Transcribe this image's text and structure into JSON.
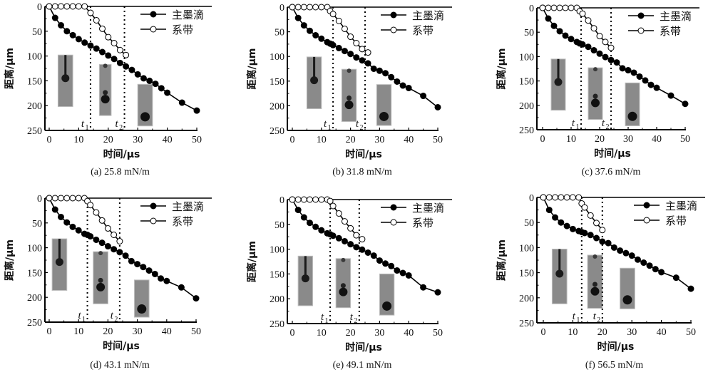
{
  "chart_data": [
    {
      "type": "line",
      "caption": "(a) 25.8 mN/m",
      "xlabel": "时间/μs",
      "ylabel": "距离/μm",
      "xlim": [
        0,
        50
      ],
      "ylim": [
        0,
        250
      ],
      "y_inverted": true,
      "xticks": [
        "0",
        "10",
        "20",
        "30",
        "40",
        "50"
      ],
      "yticks": [
        "0",
        "50",
        "100",
        "150",
        "200",
        "250"
      ],
      "legend": [
        "主墨滴",
        "系带"
      ],
      "legend_position": "top-right",
      "markers": [
        {
          "label": "t1",
          "main": "t",
          "sub": "1",
          "x": 14
        },
        {
          "label": "t2",
          "main": "t",
          "sub": "2",
          "x": 25.5
        }
      ],
      "series": [
        {
          "name": "主墨滴",
          "marker": "filled",
          "x": [
            0,
            2,
            4,
            6,
            8,
            10,
            12,
            14,
            16,
            18,
            20,
            22,
            24,
            26,
            28,
            30,
            32,
            34,
            36,
            38,
            40,
            45,
            50
          ],
          "y": [
            0,
            23,
            38,
            50,
            58,
            66,
            73,
            79,
            85,
            92,
            99,
            106,
            114,
            121,
            128,
            137,
            145,
            150,
            156,
            165,
            174,
            194,
            210
          ]
        },
        {
          "name": "系带",
          "marker": "open",
          "x": [
            0,
            2,
            4,
            6,
            8,
            10,
            12,
            14,
            16,
            18,
            20,
            22,
            24,
            26
          ],
          "y": [
            0,
            0,
            0,
            0,
            0,
            0,
            0,
            13,
            28,
            45,
            62,
            74,
            88,
            98
          ]
        }
      ]
    },
    {
      "type": "line",
      "caption": "(b) 31.8 mN/m",
      "xlabel": "时间/μs",
      "ylabel": "距离/μm",
      "xlim": [
        0,
        50
      ],
      "ylim": [
        0,
        250
      ],
      "y_inverted": true,
      "xticks": [
        "0",
        "10",
        "20",
        "30",
        "40",
        "50"
      ],
      "yticks": [
        "0",
        "50",
        "100",
        "150",
        "200",
        "250"
      ],
      "legend": [
        "主墨滴",
        "系带"
      ],
      "legend_position": "top-right",
      "markers": [
        {
          "label": "t1",
          "main": "t",
          "sub": "1",
          "x": 14
        },
        {
          "label": "t2",
          "main": "t",
          "sub": "2",
          "x": 25
        }
      ],
      "series": [
        {
          "name": "主墨滴",
          "marker": "filled",
          "x": [
            0,
            2,
            4,
            6,
            8,
            10,
            12,
            13,
            14,
            16,
            18,
            20,
            22,
            24,
            26,
            28,
            30,
            32,
            34,
            36,
            38,
            40,
            45,
            50
          ],
          "y": [
            0,
            22,
            37,
            48,
            57,
            64,
            71,
            74,
            77,
            83,
            89,
            95,
            102,
            108,
            114,
            125,
            129,
            134,
            142,
            151,
            159,
            164,
            180,
            203
          ]
        },
        {
          "name": "系带",
          "marker": "open",
          "x": [
            0,
            2,
            4,
            6,
            8,
            10,
            12,
            13,
            14,
            16,
            18,
            20,
            22,
            24,
            26
          ],
          "y": [
            0,
            0,
            0,
            0,
            0,
            0,
            0,
            8,
            14,
            28,
            44,
            60,
            73,
            85,
            92
          ]
        }
      ]
    },
    {
      "type": "line",
      "caption": "(c) 37.6 mN/m",
      "xlabel": "时间/μs",
      "ylabel": "距离/μm",
      "xlim": [
        0,
        50
      ],
      "ylim": [
        0,
        250
      ],
      "y_inverted": true,
      "xticks": [
        "0",
        "10",
        "20",
        "30",
        "40",
        "50"
      ],
      "yticks": [
        "0",
        "50",
        "100",
        "150",
        "200",
        "250"
      ],
      "legend": [
        "主墨滴",
        "系带"
      ],
      "legend_position": "top-right",
      "markers": [
        {
          "label": "t1",
          "main": "t",
          "sub": "1",
          "x": 13.5
        },
        {
          "label": "t2",
          "main": "t",
          "sub": "2",
          "x": 24
        }
      ],
      "series": [
        {
          "name": "主墨滴",
          "marker": "filled",
          "x": [
            0,
            2,
            4,
            6,
            8,
            10,
            12,
            13,
            14,
            16,
            18,
            20,
            22,
            24,
            26,
            28,
            30,
            32,
            34,
            36,
            38,
            40,
            45,
            50
          ],
          "y": [
            0,
            22,
            37,
            48,
            57,
            64,
            70,
            73,
            75,
            80,
            87,
            94,
            101,
            107,
            112,
            124,
            128,
            133,
            141,
            149,
            158,
            164,
            180,
            197
          ]
        },
        {
          "name": "系带",
          "marker": "open",
          "x": [
            0,
            2,
            4,
            6,
            8,
            10,
            12,
            13,
            14,
            16,
            18,
            20,
            22,
            24
          ],
          "y": [
            0,
            0,
            0,
            0,
            0,
            0,
            0,
            7,
            12,
            26,
            42,
            58,
            70,
            82
          ]
        }
      ]
    },
    {
      "type": "line",
      "caption": "(d) 43.1 mN/m",
      "xlabel": "时间/μs",
      "ylabel": "距离/μm",
      "xlim": [
        0,
        50
      ],
      "ylim": [
        0,
        250
      ],
      "y_inverted": true,
      "xticks": [
        "0",
        "10",
        "20",
        "30",
        "40",
        "50"
      ],
      "yticks": [
        "0",
        "50",
        "100",
        "150",
        "200",
        "250"
      ],
      "legend": [
        "主墨滴",
        "系带"
      ],
      "legend_position": "top-right",
      "markers": [
        {
          "label": "t1",
          "main": "t",
          "sub": "1",
          "x": 13
        },
        {
          "label": "t2",
          "main": "t",
          "sub": "2",
          "x": 24
        }
      ],
      "series": [
        {
          "name": "主墨滴",
          "marker": "filled",
          "x": [
            0,
            2,
            4,
            6,
            8,
            10,
            12,
            13,
            14,
            16,
            18,
            20,
            22,
            24,
            26,
            28,
            30,
            32,
            34,
            36,
            38,
            40,
            45,
            50
          ],
          "y": [
            0,
            23,
            38,
            49,
            58,
            65,
            72,
            74,
            77,
            84,
            90,
            97,
            103,
            109,
            116,
            127,
            133,
            139,
            146,
            153,
            162,
            167,
            180,
            202
          ]
        },
        {
          "name": "系带",
          "marker": "open",
          "x": [
            0,
            2,
            4,
            6,
            8,
            10,
            12,
            13,
            14,
            16,
            18,
            20,
            22,
            24
          ],
          "y": [
            0,
            0,
            0,
            0,
            0,
            0,
            0,
            6,
            14,
            29,
            45,
            61,
            74,
            87
          ]
        }
      ]
    },
    {
      "type": "line",
      "caption": "(e) 49.1 mN/m",
      "xlabel": "时间/μs",
      "ylabel": "距离/μm",
      "xlim": [
        0,
        50
      ],
      "ylim": [
        0,
        250
      ],
      "y_inverted": true,
      "xticks": [
        "0",
        "10",
        "20",
        "30",
        "40",
        "50"
      ],
      "yticks": [
        "0",
        "50",
        "100",
        "150",
        "200",
        "250"
      ],
      "legend": [
        "主墨滴",
        "系带"
      ],
      "legend_position": "top-right",
      "markers": [
        {
          "label": "t1",
          "main": "t",
          "sub": "1",
          "x": 13
        },
        {
          "label": "t2",
          "main": "t",
          "sub": "2",
          "x": 23
        }
      ],
      "series": [
        {
          "name": "主墨滴",
          "marker": "filled",
          "x": [
            0,
            2,
            4,
            6,
            8,
            10,
            12,
            13,
            14,
            16,
            18,
            20,
            22,
            24,
            26,
            28,
            30,
            32,
            34,
            36,
            38,
            40,
            45,
            50
          ],
          "y": [
            0,
            21,
            36,
            47,
            55,
            62,
            68,
            70,
            73,
            78,
            84,
            90,
            96,
            101,
            107,
            113,
            123,
            129,
            134,
            143,
            148,
            153,
            177,
            187
          ]
        },
        {
          "name": "系带",
          "marker": "open",
          "x": [
            0,
            2,
            4,
            6,
            8,
            10,
            12,
            13,
            14,
            16,
            18,
            20,
            22,
            24
          ],
          "y": [
            0,
            0,
            0,
            0,
            0,
            0,
            0,
            3,
            13,
            28,
            44,
            58,
            72,
            80
          ]
        }
      ]
    },
    {
      "type": "line",
      "caption": "(f) 56.5 mN/m",
      "xlabel": "时间/μs",
      "ylabel": "距离/μm",
      "xlim": [
        0,
        50
      ],
      "ylim": [
        0,
        250
      ],
      "y_inverted": true,
      "xticks": [
        "0",
        "10",
        "20",
        "30",
        "40",
        "50"
      ],
      "yticks": [
        "0",
        "50",
        "100",
        "150",
        "200",
        "250"
      ],
      "legend": [
        "主墨滴",
        "系带"
      ],
      "legend_position": "top-right",
      "markers": [
        {
          "label": "t1",
          "main": "t",
          "sub": "1",
          "x": 13
        },
        {
          "label": "t2",
          "main": "t",
          "sub": "2",
          "x": 20
        }
      ],
      "series": [
        {
          "name": "主墨滴",
          "marker": "filled",
          "x": [
            0,
            2,
            4,
            6,
            8,
            10,
            12,
            13,
            14,
            16,
            18,
            20,
            22,
            24,
            26,
            28,
            30,
            32,
            34,
            36,
            38,
            40,
            45,
            50
          ],
          "y": [
            0,
            25,
            40,
            50,
            57,
            63,
            67,
            69,
            71,
            75,
            81,
            88,
            91,
            100,
            106,
            111,
            116,
            124,
            130,
            136,
            143,
            149,
            160,
            182
          ]
        },
        {
          "name": "系带",
          "marker": "open",
          "x": [
            0,
            2,
            4,
            6,
            8,
            10,
            12,
            13,
            14,
            16,
            18,
            20
          ],
          "y": [
            0,
            0,
            0,
            0,
            0,
            0,
            0,
            12,
            20,
            36,
            51,
            65
          ]
        }
      ]
    }
  ]
}
